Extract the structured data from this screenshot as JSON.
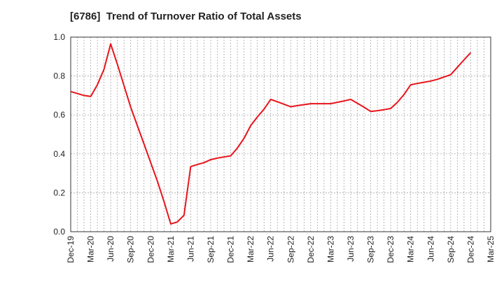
{
  "chart_data": {
    "type": "line",
    "title": "[6786]  Trend of Turnover Ratio of Total Assets",
    "xlabel": "",
    "ylabel": "",
    "ylim": [
      0,
      1.0
    ],
    "yticks": [
      "0.0",
      "0.2",
      "0.4",
      "0.6",
      "0.8",
      "1.0"
    ],
    "xticks": [
      "Dec-19",
      "Mar-20",
      "Jun-20",
      "Sep-20",
      "Dec-20",
      "Mar-21",
      "Jun-21",
      "Sep-21",
      "Dec-21",
      "Mar-22",
      "Jun-22",
      "Sep-22",
      "Dec-22",
      "Mar-23",
      "Jun-23",
      "Sep-23",
      "Dec-23",
      "Mar-24",
      "Jun-24",
      "Sep-24",
      "Dec-24",
      "Mar-25"
    ],
    "grid": true,
    "series": [
      {
        "color": "#e8141b",
        "x": [
          "Dec-19",
          "Jan-20",
          "Feb-20",
          "Mar-20",
          "Apr-20",
          "May-20",
          "Jun-20",
          "Jul-20",
          "Aug-20",
          "Sep-20",
          "Oct-20",
          "Nov-20",
          "Dec-20",
          "Jan-21",
          "Feb-21",
          "Mar-21",
          "Apr-21",
          "May-21",
          "Jun-21",
          "Jul-21",
          "Aug-21",
          "Sep-21",
          "Oct-21",
          "Nov-21",
          "Dec-21",
          "Jan-22",
          "Feb-22",
          "Mar-22",
          "Apr-22",
          "May-22",
          "Jun-22",
          "Jul-22",
          "Aug-22",
          "Sep-22",
          "Oct-22",
          "Nov-22",
          "Dec-22",
          "Jan-23",
          "Feb-23",
          "Mar-23",
          "Apr-23",
          "May-23",
          "Jun-23",
          "Jul-23",
          "Aug-23",
          "Sep-23",
          "Oct-23",
          "Nov-23",
          "Dec-23",
          "Jan-24",
          "Feb-24",
          "Mar-24",
          "Apr-24",
          "May-24",
          "Jun-24",
          "Jul-24",
          "Aug-24",
          "Sep-24",
          "Oct-24",
          "Nov-24",
          "Dec-24"
        ],
        "values": [
          0.72,
          0.71,
          0.7,
          0.695,
          0.755,
          0.835,
          0.965,
          0.86,
          0.75,
          0.64,
          0.545,
          0.45,
          0.355,
          0.26,
          0.155,
          0.04,
          0.05,
          0.085,
          0.335,
          0.345,
          0.355,
          0.37,
          0.378,
          0.384,
          0.39,
          0.43,
          0.48,
          0.545,
          0.59,
          0.63,
          0.68,
          0.668,
          0.655,
          0.642,
          0.648,
          0.653,
          0.658,
          0.658,
          0.658,
          0.658,
          0.665,
          0.672,
          0.68,
          0.66,
          0.64,
          0.618,
          0.622,
          0.627,
          0.633,
          0.665,
          0.705,
          0.755,
          0.762,
          0.768,
          0.774,
          0.783,
          0.795,
          0.807,
          0.845,
          0.883,
          0.92
        ]
      }
    ]
  }
}
